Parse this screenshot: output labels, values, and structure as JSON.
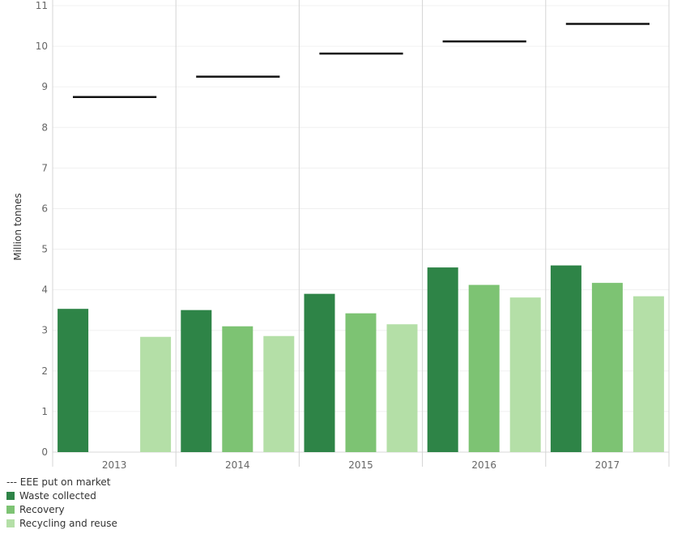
{
  "chart_data": {
    "type": "bar",
    "categories": [
      "2013",
      "2014",
      "2015",
      "2016",
      "2017"
    ],
    "ylabel": "Million tonnes",
    "ylim": [
      0,
      11
    ],
    "yticks": [
      "0",
      "1",
      "2",
      "3",
      "4",
      "5",
      "6",
      "7",
      "8",
      "9",
      "10",
      "11"
    ],
    "series": [
      {
        "name": "Waste collected",
        "color": "#2e8447",
        "values": [
          3.53,
          3.5,
          3.9,
          4.55,
          4.6
        ]
      },
      {
        "name": "Recovery",
        "color": "#7dc373",
        "values": [
          null,
          3.1,
          3.42,
          4.12,
          4.17
        ]
      },
      {
        "name": "Recycling and reuse",
        "color": "#b4dfa7",
        "values": [
          2.84,
          2.86,
          3.15,
          3.81,
          3.84
        ]
      }
    ],
    "line_series": {
      "name": "EEE put on market",
      "legend_label": "--- EEE put on market",
      "color": "#111111",
      "values": [
        8.75,
        9.25,
        9.82,
        10.12,
        10.55
      ]
    },
    "grid": true,
    "legend_position": "bottom-left"
  }
}
